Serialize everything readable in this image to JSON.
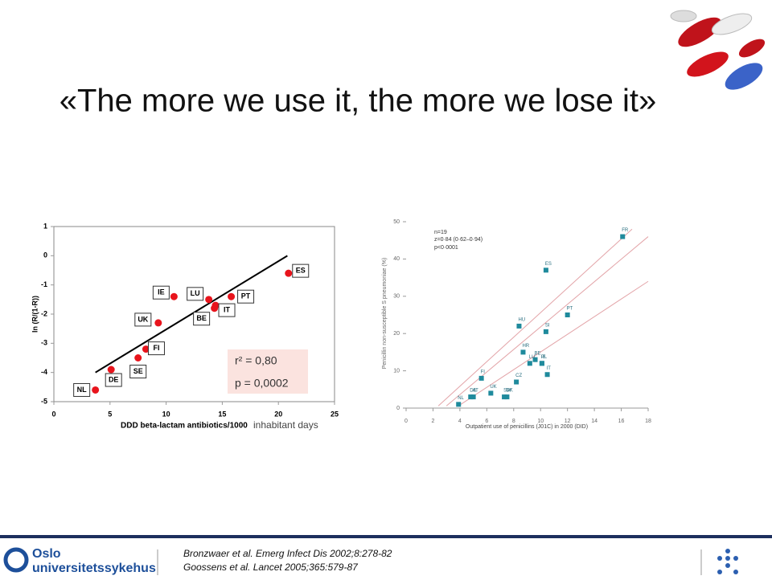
{
  "slide": {
    "title": "«The more we use it, the more we lose it»"
  },
  "chart_data": [
    {
      "type": "scatter",
      "xlabel": [
        "DDD beta-lactam antibiotics/1000",
        "inhabitant days"
      ],
      "ylabel": "ln (R/(1-R))",
      "xlim": [
        0,
        25
      ],
      "xticks": [
        0,
        5,
        10,
        15,
        20,
        25
      ],
      "ylim": [
        -5,
        1
      ],
      "yticks": [
        1,
        0,
        -1,
        -2,
        -3,
        -4,
        -5
      ],
      "frame": true,
      "color": "#e8141c",
      "point_labels": [
        "NL",
        "DE",
        "SE",
        "FI",
        "UK",
        "IE",
        "LU",
        "BE",
        "IT",
        "PT",
        "ES"
      ],
      "x": [
        3.7,
        5.1,
        7.5,
        8.2,
        9.3,
        10.7,
        13.8,
        14.3,
        14.4,
        15.8,
        20.9
      ],
      "values": [
        -4.6,
        -3.9,
        -3.5,
        -3.2,
        -2.3,
        -1.4,
        -1.5,
        -1.8,
        -1.7,
        -1.4,
        -0.6
      ],
      "fit_color": "#000000",
      "fit_lines": [
        {
          "x": [
            3.7,
            20.8
          ],
          "y": [
            -4.0,
            0
          ]
        }
      ],
      "annotations": [
        "r² = 0,80",
        "p = 0,0002"
      ]
    },
    {
      "type": "scatter",
      "xlabel": [
        "Outpatient use of penicillins (J01C) in 2000 (DID)"
      ],
      "ylabel": "Penicillin non-susceptible S pneumoniae (%)",
      "xlim": [
        0,
        18
      ],
      "xticks": [
        0,
        2,
        4,
        6,
        8,
        10,
        12,
        14,
        16,
        18
      ],
      "ylim": [
        0,
        50
      ],
      "yticks": [
        0,
        10,
        20,
        30,
        40,
        50
      ],
      "frame": false,
      "color": "#1f8a9c",
      "point_labels": [
        "FR",
        "ES",
        "PT",
        "HU",
        "SI",
        "HR",
        "BE",
        "PL",
        "LU",
        "IE",
        "IT",
        "FI",
        "CZ",
        "AT",
        "UK",
        "DK",
        "SW",
        "NL",
        "DE"
      ],
      "x": [
        16.1,
        10.4,
        12.0,
        8.4,
        10.4,
        8.7,
        9.6,
        10.1,
        9.2,
        10.1,
        10.5,
        5.6,
        8.2,
        5.0,
        6.3,
        7.5,
        7.3,
        3.9,
        4.8
      ],
      "values": [
        46,
        37,
        25,
        22,
        20.5,
        15,
        13,
        12,
        12,
        12,
        9,
        8,
        7,
        3,
        4,
        3,
        3,
        1,
        3
      ],
      "fit_color": "#e3a4a8",
      "fit_lines": [
        {
          "x": [
            2.4,
            16.8
          ],
          "y": [
            0.6,
            48
          ]
        },
        {
          "x": [
            3.0,
            18
          ],
          "y": [
            0.6,
            46
          ]
        },
        {
          "x": [
            3.9,
            18
          ],
          "y": [
            0.6,
            34
          ]
        }
      ],
      "annotations": [
        "n=19",
        "z=0·84 (0·62–0·94)",
        "p<0·0001"
      ]
    }
  ],
  "footer": {
    "logo": [
      "Oslo",
      "universitetssykehus"
    ],
    "citations": [
      "Bronzwaer et al. Emerg Infect Dis 2002;8:278-82",
      "Goossens et al. Lancet 2005;365:579-87"
    ]
  }
}
